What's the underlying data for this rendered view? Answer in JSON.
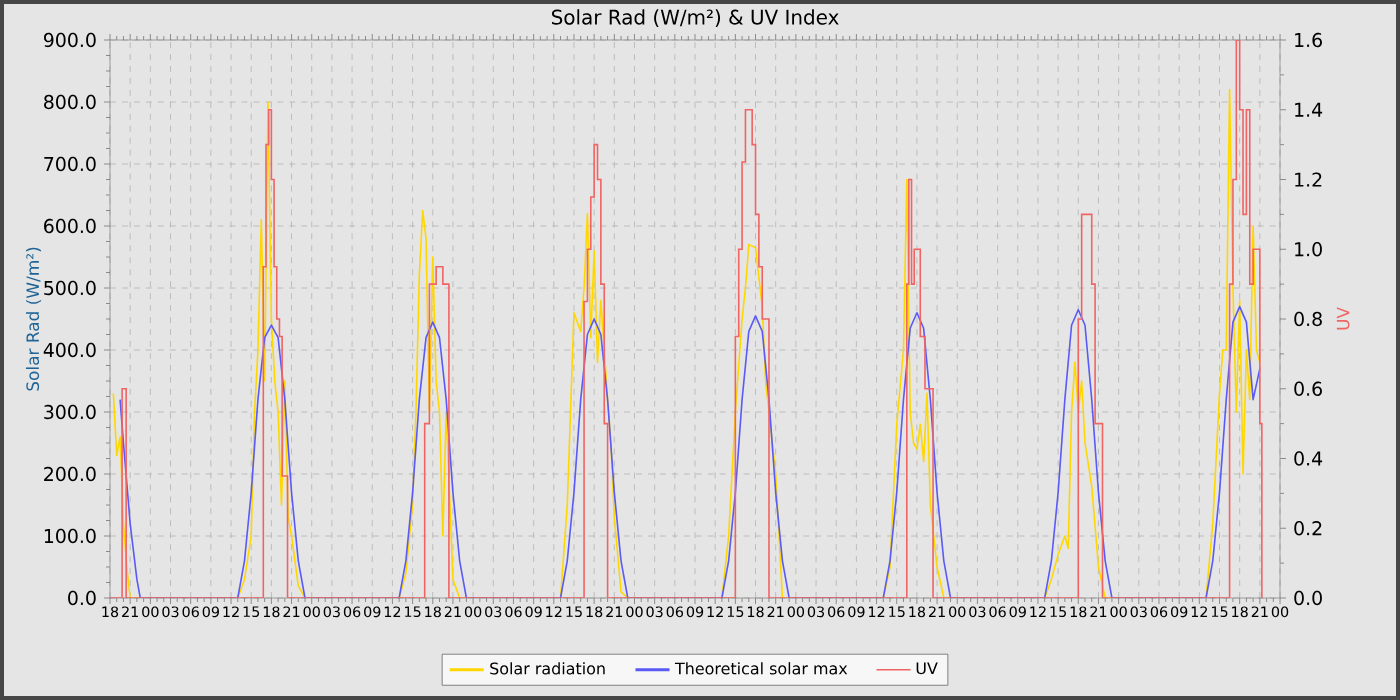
{
  "chart_data": {
    "type": "line",
    "title": "Solar Rad (W/m²) &  UV Index",
    "ylabel": "Solar Rad (W/m²)",
    "y2label": "UV",
    "xlim": [
      18,
      192
    ],
    "ylim": [
      0,
      900
    ],
    "y2lim": [
      0,
      1.6
    ],
    "xticks": [
      {
        "value": 18,
        "label": "18"
      },
      {
        "value": 21,
        "label": "21"
      },
      {
        "value": 24,
        "label": "00"
      },
      {
        "value": 27,
        "label": "03"
      },
      {
        "value": 30,
        "label": "06"
      },
      {
        "value": 33,
        "label": "09"
      },
      {
        "value": 36,
        "label": "12"
      },
      {
        "value": 39,
        "label": "15"
      },
      {
        "value": 42,
        "label": "18"
      },
      {
        "value": 45,
        "label": "21"
      },
      {
        "value": 48,
        "label": "00"
      },
      {
        "value": 51,
        "label": "03"
      },
      {
        "value": 54,
        "label": "06"
      },
      {
        "value": 57,
        "label": "09"
      },
      {
        "value": 60,
        "label": "12"
      },
      {
        "value": 63,
        "label": "15"
      },
      {
        "value": 66,
        "label": "18"
      },
      {
        "value": 69,
        "label": "21"
      },
      {
        "value": 72,
        "label": "00"
      },
      {
        "value": 75,
        "label": "03"
      },
      {
        "value": 78,
        "label": "06"
      },
      {
        "value": 81,
        "label": "09"
      },
      {
        "value": 84,
        "label": "12"
      },
      {
        "value": 87,
        "label": "15"
      },
      {
        "value": 90,
        "label": "18"
      },
      {
        "value": 93,
        "label": "21"
      },
      {
        "value": 96,
        "label": "00"
      },
      {
        "value": 99,
        "label": "03"
      },
      {
        "value": 102,
        "label": "06"
      },
      {
        "value": 105,
        "label": "09"
      },
      {
        "value": 108,
        "label": "12"
      },
      {
        "value": 111,
        "label": "15"
      },
      {
        "value": 114,
        "label": "18"
      },
      {
        "value": 117,
        "label": "21"
      },
      {
        "value": 120,
        "label": "00"
      },
      {
        "value": 123,
        "label": "03"
      },
      {
        "value": 126,
        "label": "06"
      },
      {
        "value": 129,
        "label": "09"
      },
      {
        "value": 132,
        "label": "12"
      },
      {
        "value": 135,
        "label": "15"
      },
      {
        "value": 138,
        "label": "18"
      },
      {
        "value": 141,
        "label": "21"
      },
      {
        "value": 144,
        "label": "00"
      },
      {
        "value": 147,
        "label": "03"
      },
      {
        "value": 150,
        "label": "06"
      },
      {
        "value": 153,
        "label": "09"
      },
      {
        "value": 156,
        "label": "12"
      },
      {
        "value": 159,
        "label": "15"
      },
      {
        "value": 162,
        "label": "18"
      },
      {
        "value": 165,
        "label": "21"
      },
      {
        "value": 168,
        "label": "00"
      },
      {
        "value": 171,
        "label": "03"
      },
      {
        "value": 174,
        "label": "06"
      },
      {
        "value": 177,
        "label": "09"
      },
      {
        "value": 180,
        "label": "12"
      },
      {
        "value": 183,
        "label": "15"
      },
      {
        "value": 186,
        "label": "18"
      },
      {
        "value": 189,
        "label": "21"
      },
      {
        "value": 192,
        "label": "00"
      }
    ],
    "yticks": [
      {
        "value": 0,
        "label": "0.0"
      },
      {
        "value": 100,
        "label": "100.0"
      },
      {
        "value": 200,
        "label": "200.0"
      },
      {
        "value": 300,
        "label": "300.0"
      },
      {
        "value": 400,
        "label": "400.0"
      },
      {
        "value": 500,
        "label": "500.0"
      },
      {
        "value": 600,
        "label": "600.0"
      },
      {
        "value": 700,
        "label": "700.0"
      },
      {
        "value": 800,
        "label": "800.0"
      },
      {
        "value": 900,
        "label": "900.0"
      }
    ],
    "y2ticks": [
      {
        "value": 0,
        "label": "0.0"
      },
      {
        "value": 0.2,
        "label": "0.2"
      },
      {
        "value": 0.4,
        "label": "0.4"
      },
      {
        "value": 0.6,
        "label": "0.6"
      },
      {
        "value": 0.8,
        "label": "0.8"
      },
      {
        "value": 1.0,
        "label": "1.0"
      },
      {
        "value": 1.2,
        "label": "1.2"
      },
      {
        "value": 1.4,
        "label": "1.4"
      },
      {
        "value": 1.6,
        "label": "1.6"
      }
    ],
    "grid": true,
    "legend": "bottom",
    "series": [
      {
        "name": "Solar radiation",
        "color": "#ffd700",
        "type": "line",
        "x": [
          18.5,
          19,
          19.5,
          20,
          20.5,
          21,
          37,
          38,
          39,
          39.5,
          40,
          40.5,
          41,
          41.5,
          42,
          42.5,
          43,
          43.5,
          44,
          44.5,
          45,
          46,
          47,
          61,
          62,
          63,
          63.5,
          64,
          64.5,
          65,
          65.5,
          66,
          66.5,
          67,
          67.5,
          68,
          69,
          70,
          85,
          86,
          87,
          88,
          88.5,
          89,
          89.5,
          90,
          90.5,
          91,
          92,
          92.5,
          93,
          94,
          95,
          109,
          110,
          111,
          112,
          112.5,
          113,
          114,
          115,
          115.5,
          116,
          117,
          118,
          133,
          134,
          135,
          136,
          136.5,
          137,
          137.5,
          138,
          138.5,
          139,
          139.5,
          140,
          141,
          142,
          157,
          158,
          159,
          160,
          160.5,
          161,
          161.5,
          162,
          162.5,
          163,
          164,
          165,
          166,
          181,
          182,
          183,
          183.5,
          184,
          184.5,
          185,
          185.5,
          186,
          186.5,
          187,
          187.5,
          188,
          188.5,
          189
        ],
        "values": [
          330,
          230,
          260,
          120,
          50,
          0,
          0,
          30,
          100,
          300,
          400,
          610,
          350,
          800,
          450,
          350,
          300,
          150,
          350,
          130,
          100,
          20,
          0,
          0,
          40,
          150,
          300,
          520,
          625,
          580,
          300,
          550,
          350,
          300,
          100,
          300,
          30,
          0,
          0,
          150,
          460,
          430,
          500,
          620,
          420,
          560,
          380,
          480,
          320,
          250,
          130,
          10,
          0,
          0,
          100,
          300,
          450,
          500,
          570,
          565,
          470,
          350,
          300,
          200,
          0,
          0,
          50,
          280,
          400,
          675,
          300,
          250,
          240,
          280,
          220,
          330,
          150,
          50,
          0,
          0,
          30,
          70,
          100,
          80,
          300,
          380,
          300,
          350,
          250,
          180,
          50,
          0,
          0,
          120,
          330,
          400,
          400,
          820,
          500,
          300,
          480,
          200,
          400,
          320,
          600,
          400,
          380
        ]
      },
      {
        "name": "Theoretical solar max",
        "color": "#5a5af5",
        "type": "line",
        "x": [
          19.5,
          20,
          21,
          22,
          22.5,
          37,
          38,
          39,
          40,
          41,
          42,
          43,
          44,
          45,
          46,
          47,
          61,
          62,
          63,
          64,
          65,
          66,
          67,
          68,
          69,
          70,
          71,
          85,
          86,
          87,
          88,
          89,
          90,
          91,
          92,
          93,
          94,
          95,
          109,
          110,
          111,
          112,
          113,
          114,
          115,
          116,
          117,
          118,
          119,
          133,
          134,
          135,
          136,
          137,
          138,
          139,
          140,
          141,
          142,
          143,
          157,
          158,
          159,
          160,
          161,
          162,
          163,
          164,
          165,
          166,
          167,
          181,
          182,
          183,
          184,
          185,
          186,
          187,
          188,
          189
        ],
        "values": [
          320,
          250,
          120,
          30,
          0,
          0,
          60,
          170,
          320,
          420,
          440,
          420,
          320,
          170,
          60,
          0,
          0,
          60,
          170,
          320,
          420,
          445,
          420,
          320,
          170,
          60,
          0,
          0,
          60,
          170,
          320,
          425,
          450,
          425,
          320,
          170,
          60,
          0,
          0,
          60,
          170,
          320,
          430,
          455,
          430,
          320,
          170,
          60,
          0,
          0,
          60,
          170,
          320,
          435,
          460,
          435,
          320,
          170,
          60,
          0,
          0,
          60,
          170,
          320,
          440,
          465,
          440,
          320,
          170,
          60,
          0,
          0,
          60,
          170,
          320,
          445,
          470,
          445,
          320,
          370
        ]
      },
      {
        "name": "UV",
        "color": "#f06464",
        "type": "step",
        "axis": "y2",
        "x": [
          18,
          19.8,
          20.4,
          40.8,
          41.2,
          41.6,
          42,
          42.4,
          42.8,
          43.2,
          43.6,
          44.4,
          64.8,
          65.5,
          66.5,
          67.5,
          68.4,
          88.5,
          89,
          89.5,
          90,
          90.5,
          91,
          91.5,
          92,
          111,
          111.5,
          112,
          112.5,
          113.5,
          114,
          114.5,
          115,
          116,
          136.5,
          136.8,
          137.2,
          137.6,
          138.5,
          139.2,
          140.4,
          162,
          162.5,
          164,
          164.5,
          165.6,
          184.5,
          185,
          185.5,
          186,
          186.5,
          187,
          187.5,
          188,
          189,
          189.3
        ],
        "values": [
          0,
          0.6,
          0,
          0.95,
          1.3,
          1.4,
          1.2,
          0.95,
          0.8,
          0.75,
          0.35,
          0,
          0.5,
          0.9,
          0.95,
          0.9,
          0,
          0.85,
          1.0,
          1.15,
          1.3,
          1.2,
          0.9,
          0.5,
          0,
          0.75,
          1.0,
          1.25,
          1.4,
          1.3,
          1.1,
          0.95,
          0.8,
          0,
          0.9,
          1.2,
          0.9,
          1.0,
          0.75,
          0.6,
          0,
          0.8,
          1.1,
          0.9,
          0.5,
          0,
          0.9,
          1.2,
          1.6,
          1.4,
          1.1,
          1.4,
          0.9,
          1.0,
          0.5,
          0
        ]
      }
    ]
  }
}
